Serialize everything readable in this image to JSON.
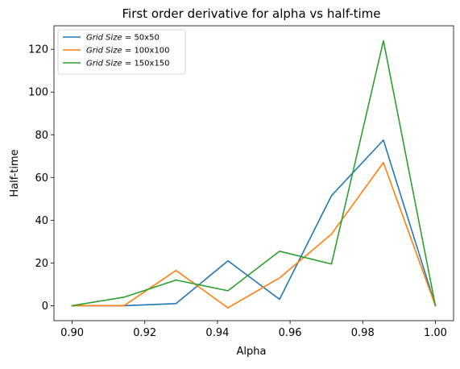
{
  "chart_data": {
    "type": "line",
    "title": "First order derivative for alpha vs half-time",
    "xlabel": "Alpha",
    "ylabel": "Half-time",
    "xlim": [
      0.895,
      1.005
    ],
    "ylim": [
      -7,
      131
    ],
    "grid": false,
    "legend_position": "top-left",
    "x": [
      0.9,
      0.9143,
      0.9286,
      0.9429,
      0.9571,
      0.9714,
      0.9857,
      1.0
    ],
    "x_ticks": [
      "0.90",
      "0.92",
      "0.94",
      "0.96",
      "0.98",
      "1.00"
    ],
    "x_tick_values": [
      0.9,
      0.92,
      0.94,
      0.96,
      0.98,
      1.0
    ],
    "y_ticks": [
      "0",
      "20",
      "40",
      "60",
      "80",
      "100",
      "120"
    ],
    "y_tick_values": [
      0,
      20,
      40,
      60,
      80,
      100,
      120
    ],
    "series": [
      {
        "name": "Grid Size = 50x50",
        "legend_label_italic": "Grid Size",
        "legend_label_rest": " = 50x50",
        "color": "#1f77b4",
        "values": [
          0,
          0,
          1,
          21,
          3,
          51.5,
          77.5,
          0
        ]
      },
      {
        "name": "Grid Size = 100x100",
        "legend_label_italic": "Grid Size",
        "legend_label_rest": " = 100x100",
        "color": "#ff7f0e",
        "values": [
          0,
          0,
          16.5,
          -1,
          13,
          33.5,
          67,
          0
        ]
      },
      {
        "name": "Grid Size = 150x150",
        "legend_label_italic": "Grid Size",
        "legend_label_rest": " = 150x150",
        "color": "#2ca02c",
        "values": [
          0,
          4,
          12,
          7,
          25.5,
          19.5,
          124,
          0
        ]
      }
    ]
  }
}
